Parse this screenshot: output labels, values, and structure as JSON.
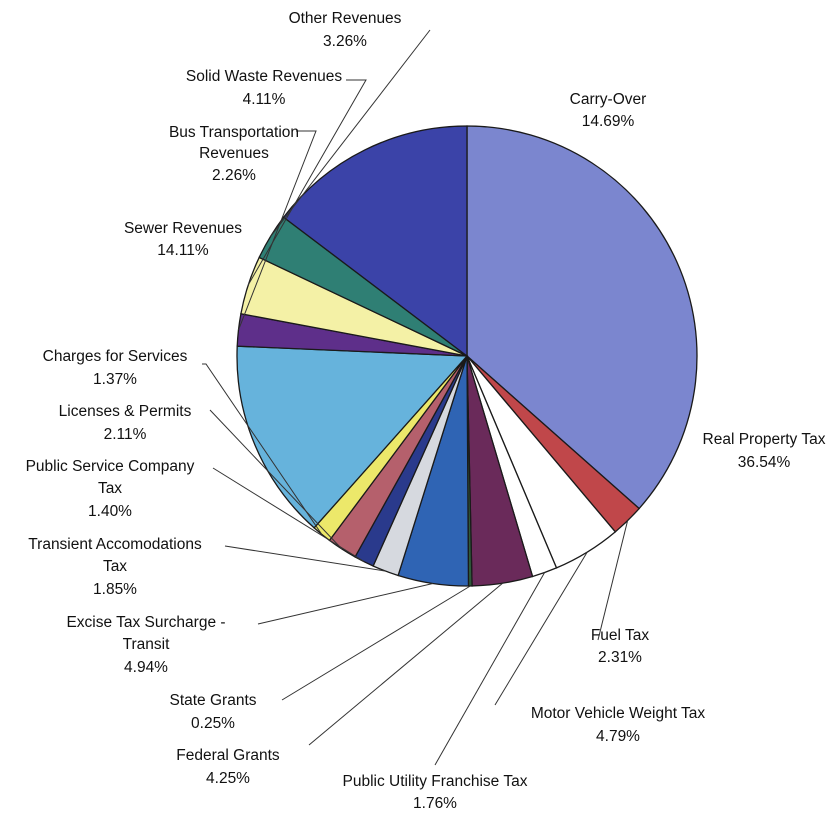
{
  "chart_data": {
    "type": "pie",
    "title": "",
    "slices": [
      {
        "name": "Real Property Tax",
        "value": 36.54,
        "label": "36.54%",
        "color": "#7b86cf"
      },
      {
        "name": "Fuel Tax",
        "value": 2.31,
        "label": "2.31%",
        "color": "#c0474a"
      },
      {
        "name": "Motor Vehicle Weight Tax",
        "value": 4.79,
        "label": "4.79%",
        "color": "#ffffff"
      },
      {
        "name": "Public Utility Franchise Tax",
        "value": 1.76,
        "label": "1.76%",
        "color": "#ffffff"
      },
      {
        "name": "Federal Grants",
        "value": 4.25,
        "label": "4.25%",
        "color": "#6a2a5a"
      },
      {
        "name": "State Grants",
        "value": 0.25,
        "label": "0.25%",
        "color": "#2e5a3a"
      },
      {
        "name": "Excise Tax Surcharge - Transit",
        "value": 4.94,
        "label": "4.94%",
        "color": "#2f64b4"
      },
      {
        "name": "Transient Accomodations Tax",
        "value": 1.85,
        "label": "1.85%",
        "color": "#d6d9df"
      },
      {
        "name": "Public Service Company Tax",
        "value": 1.4,
        "label": "1.40%",
        "color": "#2a3a8c"
      },
      {
        "name": "Licenses & Permits",
        "value": 2.11,
        "label": "2.11%",
        "color": "#b5606c"
      },
      {
        "name": "Charges for Services",
        "value": 1.37,
        "label": "1.37%",
        "color": "#ece86a"
      },
      {
        "name": "Sewer Revenues",
        "value": 14.11,
        "label": "14.11%",
        "color": "#66b3dc"
      },
      {
        "name": "Bus Transportation Revenues",
        "value": 2.26,
        "label": "2.26%",
        "color": "#5e2f8a"
      },
      {
        "name": "Solid Waste Revenues",
        "value": 4.11,
        "label": "4.11%",
        "color": "#f4f1a6"
      },
      {
        "name": "Other Revenues",
        "value": 3.26,
        "label": "3.26%",
        "color": "#2f7f74"
      },
      {
        "name": "Carry-Over",
        "value": 14.69,
        "label": "14.69%",
        "color": "#3b43a8"
      }
    ],
    "start_angle_deg": 0,
    "direction": "clockwise",
    "legend": "none",
    "labels": "outside with leader lines"
  }
}
